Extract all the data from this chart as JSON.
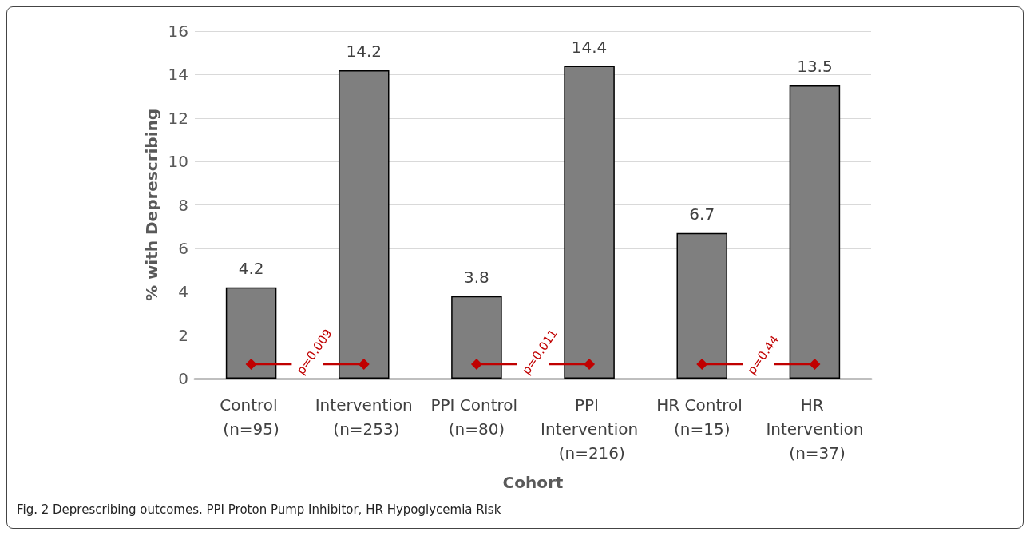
{
  "chart_data": {
    "type": "bar",
    "categories": [
      "Control (n=95)",
      "Intervention (n=253)",
      "PPI Control (n=80)",
      "PPI Intervention (n=216)",
      "HR Control (n=15)",
      "HR Intervention (n=37)"
    ],
    "values": [
      4.2,
      14.2,
      3.8,
      14.4,
      6.7,
      13.5
    ],
    "color": "#7f7f7f",
    "xlabel": "Cohort",
    "ylabel": "% with Deprescribing",
    "ylim": [
      0,
      16
    ],
    "yticks": [
      0,
      2,
      4,
      6,
      8,
      10,
      12,
      14,
      16
    ],
    "grid": "y",
    "data_labels": true,
    "annotations": [
      "p=0.009",
      "p=0.011",
      "p=0.44",
      "Fig. 2  Deprescribing outcomes. PPI Proton Pump Inhibitor, HR Hypoglycemia Risk"
    ]
  }
}
